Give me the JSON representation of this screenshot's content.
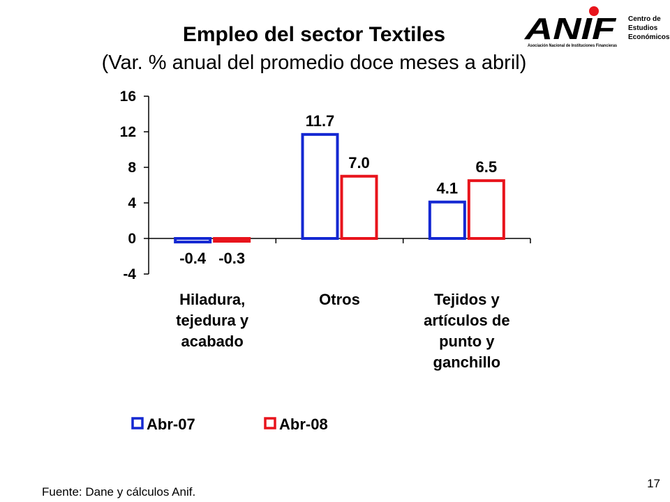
{
  "title": "Empleo del sector Textiles",
  "subtitle": "(Var. % anual del promedio doce meses a abril)",
  "logo": {
    "wordmark": "ANIF",
    "tagline": "Asociación Nacional de Instituciones Financieras",
    "side_text": [
      "Centro de",
      "Estudios",
      "Económicos"
    ],
    "dot_color": "#e8141c"
  },
  "chart_data": {
    "type": "bar",
    "categories": [
      [
        "Hiladura,",
        "tejedura y",
        "acabado"
      ],
      [
        "Otros"
      ],
      [
        "Tejidos y",
        "artículos de",
        "punto y",
        "ganchillo"
      ]
    ],
    "series": [
      {
        "name": "Abr-07",
        "values": [
          -0.4,
          11.7,
          4.1
        ],
        "labels": [
          "-0.4",
          "11.7",
          "4.1"
        ],
        "color": "#1428d2"
      },
      {
        "name": "Abr-08",
        "values": [
          -0.3,
          7.0,
          6.5
        ],
        "labels": [
          "-0.3",
          "7.0",
          "6.5"
        ],
        "color": "#e8141c"
      }
    ],
    "ylim": [
      -4,
      16
    ],
    "yticks": [
      -4,
      0,
      4,
      8,
      12,
      16
    ],
    "grid": false,
    "legend_position": "bottom"
  },
  "source": "Fuente: Dane y cálculos Anif.",
  "page_number": "17"
}
